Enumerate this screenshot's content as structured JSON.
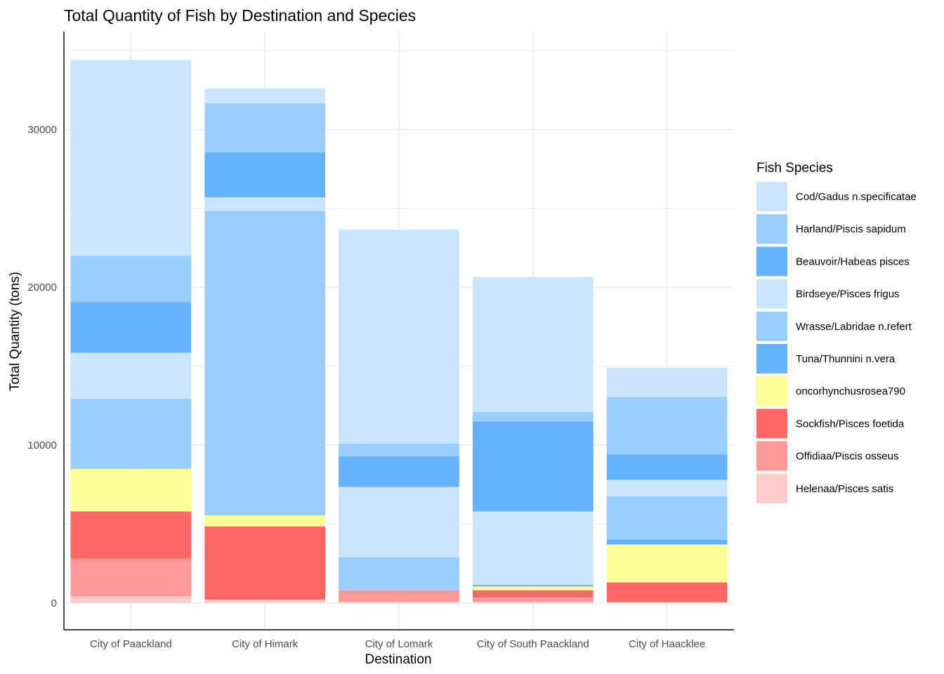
{
  "chart_data": {
    "type": "bar",
    "stacked": true,
    "title": "Total Quantity of Fish by Destination and Species",
    "xlabel": "Destination",
    "ylabel": "Total Quantity (tons)",
    "ylim": [
      -1700,
      36200
    ],
    "yticks": [
      0,
      10000,
      20000,
      30000
    ],
    "grid": true,
    "legend_position": "right",
    "legend_title": "Fish Species",
    "categories": [
      "City of Paackland",
      "City of Himark",
      "City of Lomark",
      "City of South Paackland",
      "City of Haacklee"
    ],
    "series": [
      {
        "name": "Helenaa/Pisces satis",
        "color": "#FFCCCC",
        "values": [
          400,
          200,
          50,
          50,
          50
        ]
      },
      {
        "name": "Offidiaa/Piscis osseus",
        "color": "#FF9999",
        "values": [
          2400,
          0,
          750,
          300,
          0
        ]
      },
      {
        "name": "Sockfish/Pisces foetida",
        "color": "#FF6666",
        "values": [
          3000,
          4650,
          0,
          450,
          1250
        ]
      },
      {
        "name": "oncorhynchusrosea790",
        "color": "#FFFF99",
        "values": [
          2700,
          700,
          0,
          250,
          2400
        ]
      },
      {
        "name": "Tuna/Thunnini n.vera",
        "color": "#66B2FF",
        "values": [
          0,
          0,
          0,
          100,
          300
        ]
      },
      {
        "name": "Wrasse/Labridae n.refert",
        "color": "#99CCFF",
        "values": [
          4450,
          19300,
          2100,
          0,
          2750
        ]
      },
      {
        "name": "Birdseye/Pisces frigus",
        "color": "#CCE5FF",
        "values": [
          2900,
          850,
          4450,
          4650,
          1050
        ]
      },
      {
        "name": "Beauvoir/Habeas pisces",
        "color": "#66B2FF",
        "values": [
          3200,
          2850,
          1950,
          5700,
          1600
        ]
      },
      {
        "name": "Harland/Piscis sapidum",
        "color": "#99CCFF",
        "values": [
          2950,
          3100,
          800,
          600,
          3650
        ]
      },
      {
        "name": "Cod/Gadus n.specificatae",
        "color": "#CCE5FF",
        "values": [
          12400,
          950,
          13550,
          8550,
          1850
        ]
      }
    ],
    "legend_order": [
      "Cod/Gadus n.specificatae",
      "Harland/Piscis sapidum",
      "Beauvoir/Habeas pisces",
      "Birdseye/Pisces frigus",
      "Wrasse/Labridae n.refert",
      "Tuna/Thunnini n.vera",
      "oncorhynchusrosea790",
      "Sockfish/Pisces foetida",
      "Offidiaa/Piscis osseus",
      "Helenaa/Pisces satis"
    ]
  }
}
